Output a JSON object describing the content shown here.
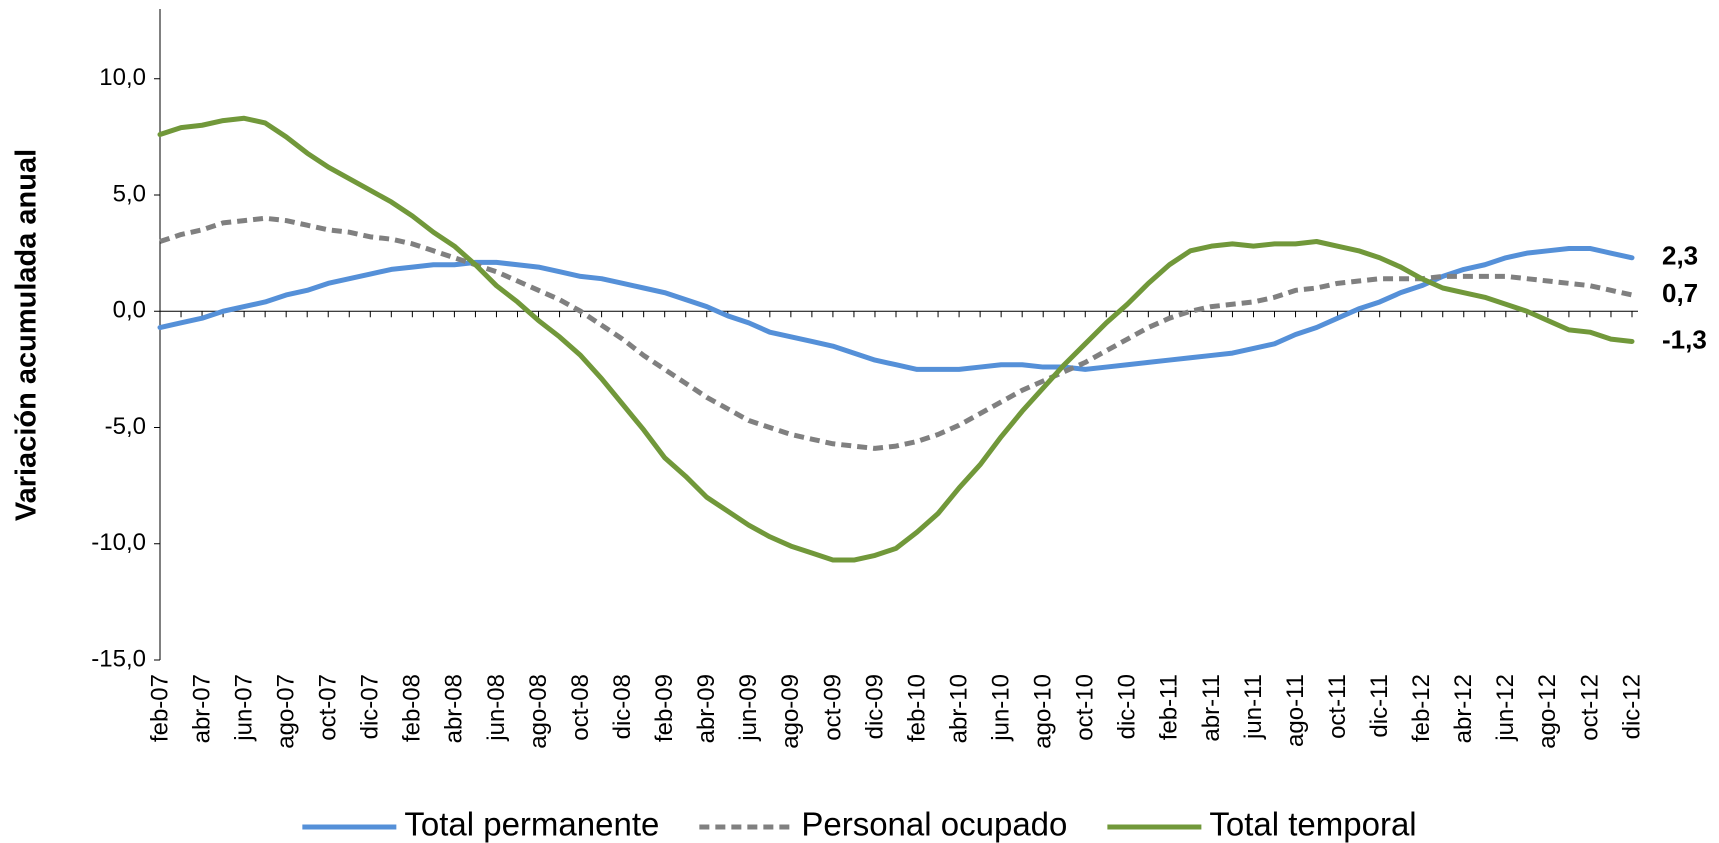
{
  "chart_data": {
    "type": "line",
    "y_label": "Variación acumulada anual",
    "categories": [
      "feb-07",
      null,
      "abr-07",
      null,
      "jun-07",
      null,
      "ago-07",
      null,
      "oct-07",
      null,
      "dic-07",
      null,
      "feb-08",
      null,
      "abr-08",
      null,
      "jun-08",
      null,
      "ago-08",
      null,
      "oct-08",
      null,
      "dic-08",
      null,
      "feb-09",
      null,
      "abr-09",
      null,
      "jun-09",
      null,
      "ago-09",
      null,
      "oct-09",
      null,
      "dic-09",
      null,
      "feb-10",
      null,
      "abr-10",
      null,
      "jun-10",
      null,
      "ago-10",
      null,
      "oct-10",
      null,
      "dic-10",
      null,
      "feb-11",
      null,
      "abr-11",
      null,
      "jun-11",
      null,
      "ago-11",
      null,
      "oct-11",
      null,
      "dic-11",
      null,
      "feb-12",
      null,
      "abr-12",
      null,
      "jun-12",
      null,
      "ago-12",
      null,
      "oct-12",
      null,
      "dic-12"
    ],
    "series": [
      {
        "name": "Total permanente",
        "color": "#5590d8",
        "label_color": "#4f81bd",
        "dashed": false,
        "values": [
          -0.7,
          -0.5,
          -0.3,
          0.0,
          0.2,
          0.4,
          0.7,
          0.9,
          1.2,
          1.4,
          1.6,
          1.8,
          1.9,
          2.0,
          2.0,
          2.1,
          2.1,
          2.0,
          1.9,
          1.7,
          1.5,
          1.4,
          1.2,
          1.0,
          0.8,
          0.5,
          0.2,
          -0.2,
          -0.5,
          -0.9,
          -1.1,
          -1.3,
          -1.5,
          -1.8,
          -2.1,
          -2.3,
          -2.5,
          -2.5,
          -2.5,
          -2.4,
          -2.3,
          -2.3,
          -2.4,
          -2.4,
          -2.5,
          -2.4,
          -2.3,
          -2.2,
          -2.1,
          -2.0,
          -1.9,
          -1.8,
          -1.6,
          -1.4,
          -1.0,
          -0.7,
          -0.3,
          0.1,
          0.4,
          0.8,
          1.1,
          1.5,
          1.8,
          2.0,
          2.3,
          2.5,
          2.6,
          2.7,
          2.7,
          2.5,
          2.3
        ],
        "value_labels": [
          null,
          null,
          null,
          null,
          null,
          null,
          null,
          null,
          null,
          null,
          null,
          null,
          null,
          null,
          null,
          null,
          null,
          null,
          null,
          null,
          null,
          null,
          null,
          null,
          null,
          null,
          null,
          null,
          null,
          null,
          null,
          null,
          null,
          null,
          null,
          null,
          null,
          null,
          null,
          null,
          null,
          null,
          null,
          null,
          null,
          null,
          null,
          null,
          null,
          null,
          null,
          null,
          null,
          null,
          null,
          null,
          null,
          null,
          null,
          null,
          null,
          null,
          null,
          null,
          null,
          null,
          null,
          null,
          null,
          null,
          "2,3"
        ]
      },
      {
        "name": "Personal ocupado",
        "color": "#808080",
        "label_color": "#000000",
        "dashed": true,
        "values": [
          3.0,
          3.3,
          3.5,
          3.8,
          3.9,
          4.0,
          3.9,
          3.7,
          3.5,
          3.4,
          3.2,
          3.1,
          2.9,
          2.6,
          2.3,
          2.0,
          1.7,
          1.3,
          0.9,
          0.5,
          0.0,
          -0.6,
          -1.2,
          -1.9,
          -2.5,
          -3.1,
          -3.7,
          -4.2,
          -4.7,
          -5.0,
          -5.3,
          -5.5,
          -5.7,
          -5.8,
          -5.9,
          -5.8,
          -5.6,
          -5.3,
          -4.9,
          -4.4,
          -3.9,
          -3.4,
          -3.0,
          -2.6,
          -2.2,
          -1.7,
          -1.2,
          -0.7,
          -0.3,
          0.0,
          0.2,
          0.3,
          0.4,
          0.6,
          0.9,
          1.0,
          1.2,
          1.3,
          1.4,
          1.4,
          1.4,
          1.5,
          1.5,
          1.5,
          1.5,
          1.4,
          1.3,
          1.2,
          1.1,
          0.9,
          0.7
        ],
        "value_labels": [
          null,
          null,
          null,
          null,
          null,
          null,
          null,
          null,
          null,
          null,
          null,
          null,
          null,
          null,
          null,
          null,
          null,
          null,
          null,
          null,
          null,
          null,
          null,
          null,
          null,
          null,
          null,
          null,
          null,
          null,
          null,
          null,
          null,
          null,
          null,
          null,
          null,
          null,
          null,
          null,
          null,
          null,
          null,
          null,
          null,
          null,
          null,
          null,
          null,
          null,
          null,
          null,
          null,
          null,
          null,
          null,
          null,
          null,
          null,
          null,
          null,
          null,
          null,
          null,
          null,
          null,
          null,
          null,
          null,
          null,
          "0,7"
        ]
      },
      {
        "name": "Total temporal",
        "color": "#71983a",
        "label_color": "#5e8a2e",
        "dashed": false,
        "values": [
          7.6,
          7.9,
          8.0,
          8.2,
          8.3,
          8.1,
          7.5,
          6.8,
          6.2,
          5.7,
          5.2,
          4.7,
          4.1,
          3.4,
          2.8,
          2.0,
          1.1,
          0.4,
          -0.4,
          -1.1,
          -1.9,
          -2.9,
          -4.0,
          -5.1,
          -6.3,
          -7.1,
          -8.0,
          -8.6,
          -9.2,
          -9.7,
          -10.1,
          -10.4,
          -10.7,
          -10.7,
          -10.5,
          -10.2,
          -9.5,
          -8.7,
          -7.6,
          -6.6,
          -5.4,
          -4.3,
          -3.3,
          -2.3,
          -1.4,
          -0.5,
          0.3,
          1.2,
          2.0,
          2.6,
          2.8,
          2.9,
          2.8,
          2.9,
          2.9,
          3.0,
          2.8,
          2.6,
          2.3,
          1.9,
          1.4,
          1.0,
          0.8,
          0.6,
          0.3,
          0.0,
          -0.4,
          -0.8,
          -0.9,
          -1.2,
          -1.3
        ],
        "value_labels": [
          null,
          null,
          null,
          null,
          null,
          null,
          null,
          null,
          null,
          null,
          null,
          null,
          null,
          null,
          null,
          null,
          null,
          null,
          null,
          null,
          null,
          null,
          null,
          null,
          null,
          null,
          null,
          null,
          null,
          null,
          null,
          null,
          null,
          null,
          null,
          null,
          null,
          null,
          null,
          null,
          null,
          null,
          null,
          null,
          null,
          null,
          null,
          null,
          null,
          null,
          null,
          null,
          null,
          null,
          null,
          null,
          null,
          null,
          null,
          null,
          null,
          null,
          null,
          null,
          null,
          null,
          null,
          null,
          null,
          null,
          "-1,3"
        ]
      }
    ],
    "ylim": [
      -15,
      13
    ],
    "yticks": [
      {
        "value": -15,
        "label": "-15,0"
      },
      {
        "value": -10,
        "label": "-10,0"
      },
      {
        "value": -5,
        "label": "-5,0"
      },
      {
        "value": 0,
        "label": "0,0"
      },
      {
        "value": 5,
        "label": "5,0"
      },
      {
        "value": 10,
        "label": "10,0"
      }
    ],
    "grid": false,
    "legend": "bottom"
  }
}
